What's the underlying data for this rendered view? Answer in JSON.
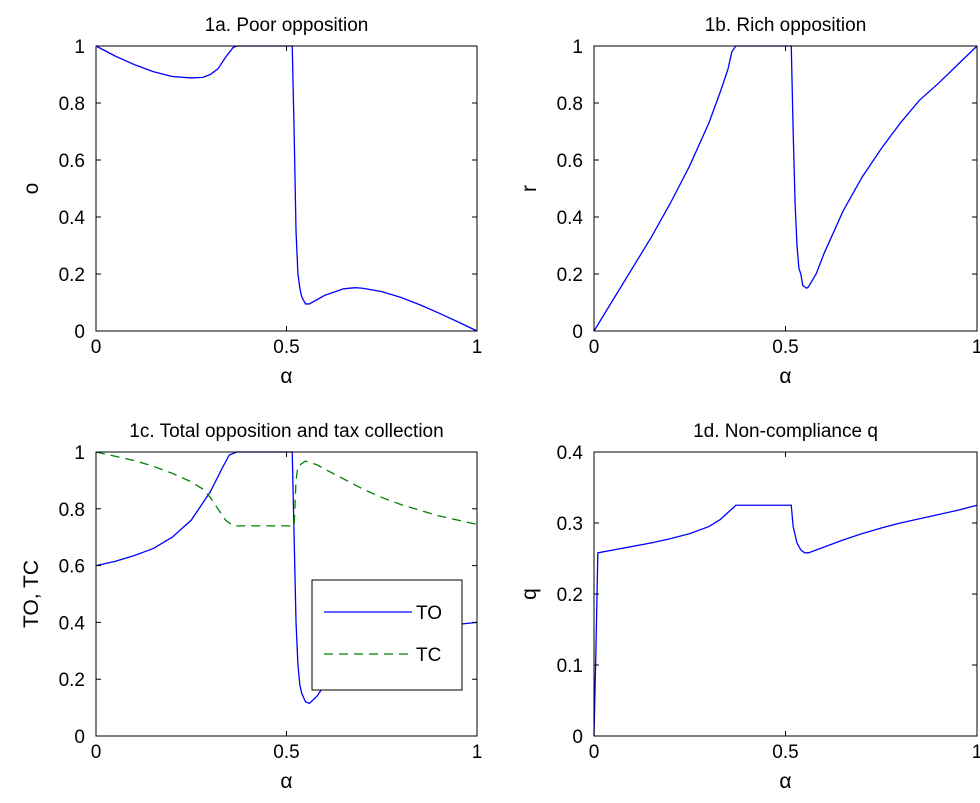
{
  "chart_data": [
    {
      "id": "1a",
      "type": "line",
      "title": "1a. Poor opposition",
      "xlabel": "α",
      "ylabel": "o",
      "xlim": [
        0,
        1
      ],
      "ylim": [
        0,
        1
      ],
      "xticks": [
        "0",
        "0.5",
        "1"
      ],
      "yticks": [
        "0",
        "0.2",
        "0.4",
        "0.6",
        "0.8",
        "1"
      ],
      "grid": false,
      "series": [
        {
          "color": "#0000ff",
          "dash": "solid",
          "x": [
            0,
            0.05,
            0.1,
            0.15,
            0.2,
            0.25,
            0.28,
            0.3,
            0.32,
            0.34,
            0.36,
            0.37,
            0.4,
            0.45,
            0.5,
            0.515,
            0.52,
            0.525,
            0.53,
            0.535,
            0.54,
            0.55,
            0.56,
            0.6,
            0.65,
            0.68,
            0.7,
            0.75,
            0.8,
            0.85,
            0.9,
            0.95,
            1.0
          ],
          "y": [
            1.0,
            0.965,
            0.935,
            0.91,
            0.893,
            0.888,
            0.89,
            0.9,
            0.92,
            0.96,
            0.995,
            1.0,
            1.0,
            1.0,
            1.0,
            1.0,
            0.7,
            0.35,
            0.2,
            0.15,
            0.12,
            0.095,
            0.095,
            0.125,
            0.148,
            0.152,
            0.15,
            0.138,
            0.118,
            0.092,
            0.063,
            0.032,
            0.0
          ]
        }
      ]
    },
    {
      "id": "1b",
      "type": "line",
      "title": "1b. Rich opposition",
      "xlabel": "α",
      "ylabel": "r",
      "xlim": [
        0,
        1
      ],
      "ylim": [
        0,
        1
      ],
      "xticks": [
        "0",
        "0.5",
        "1"
      ],
      "yticks": [
        "0",
        "0.2",
        "0.4",
        "0.6",
        "0.8",
        "1"
      ],
      "grid": false,
      "series": [
        {
          "color": "#0000ff",
          "dash": "solid",
          "x": [
            0,
            0.05,
            0.1,
            0.15,
            0.2,
            0.25,
            0.3,
            0.33,
            0.35,
            0.36,
            0.37,
            0.4,
            0.45,
            0.5,
            0.515,
            0.52,
            0.525,
            0.53,
            0.535,
            0.54,
            0.545,
            0.555,
            0.56,
            0.58,
            0.6,
            0.65,
            0.7,
            0.75,
            0.8,
            0.85,
            0.9,
            0.95,
            1.0
          ],
          "y": [
            0.0,
            0.11,
            0.22,
            0.33,
            0.45,
            0.58,
            0.73,
            0.84,
            0.92,
            0.98,
            1.0,
            1.0,
            1.0,
            1.0,
            1.0,
            0.7,
            0.45,
            0.3,
            0.22,
            0.2,
            0.16,
            0.15,
            0.155,
            0.2,
            0.27,
            0.42,
            0.54,
            0.64,
            0.73,
            0.81,
            0.87,
            0.935,
            1.0
          ]
        }
      ]
    },
    {
      "id": "1c",
      "type": "line",
      "title": "1c. Total opposition and tax collection",
      "xlabel": "α",
      "ylabel": "TO, TC",
      "xlim": [
        0,
        1
      ],
      "ylim": [
        0,
        1
      ],
      "xticks": [
        "0",
        "0.5",
        "1"
      ],
      "yticks": [
        "0",
        "0.2",
        "0.4",
        "0.6",
        "0.8",
        "1"
      ],
      "grid": false,
      "legend": "center-right",
      "series": [
        {
          "name": "TO",
          "color": "#0000ff",
          "dash": "solid",
          "x": [
            0,
            0.05,
            0.1,
            0.15,
            0.2,
            0.25,
            0.3,
            0.33,
            0.35,
            0.37,
            0.4,
            0.45,
            0.5,
            0.515,
            0.52,
            0.525,
            0.53,
            0.535,
            0.54,
            0.55,
            0.56,
            0.58,
            0.6,
            0.65,
            0.7,
            0.75,
            0.8,
            0.85,
            0.9,
            0.95,
            1.0
          ],
          "y": [
            0.6,
            0.615,
            0.635,
            0.66,
            0.7,
            0.76,
            0.86,
            0.94,
            0.99,
            1.0,
            1.0,
            1.0,
            1.0,
            1.0,
            0.7,
            0.4,
            0.25,
            0.18,
            0.15,
            0.12,
            0.115,
            0.14,
            0.18,
            0.25,
            0.3,
            0.335,
            0.36,
            0.375,
            0.385,
            0.393,
            0.4
          ]
        },
        {
          "name": "TC",
          "color": "#008000",
          "dash": "dashed",
          "x": [
            0,
            0.05,
            0.1,
            0.15,
            0.2,
            0.25,
            0.28,
            0.3,
            0.32,
            0.34,
            0.36,
            0.4,
            0.45,
            0.5,
            0.52,
            0.525,
            0.53,
            0.55,
            0.58,
            0.6,
            0.65,
            0.7,
            0.75,
            0.8,
            0.85,
            0.9,
            0.95,
            1.0
          ],
          "y": [
            1.0,
            0.985,
            0.97,
            0.95,
            0.925,
            0.895,
            0.87,
            0.84,
            0.8,
            0.76,
            0.74,
            0.74,
            0.74,
            0.74,
            0.74,
            0.9,
            0.95,
            0.968,
            0.955,
            0.94,
            0.905,
            0.87,
            0.84,
            0.815,
            0.795,
            0.775,
            0.76,
            0.745
          ]
        }
      ]
    },
    {
      "id": "1d",
      "type": "line",
      "title": "1d. Non-compliance q",
      "xlabel": "α",
      "ylabel": "q",
      "xlim": [
        0,
        1
      ],
      "ylim": [
        0,
        0.4
      ],
      "xticks": [
        "0",
        "0.5",
        "1"
      ],
      "yticks": [
        "0",
        "0.1",
        "0.2",
        "0.3",
        "0.4"
      ],
      "grid": false,
      "series": [
        {
          "color": "#0000ff",
          "dash": "solid",
          "x": [
            0,
            0.005,
            0.01,
            0.05,
            0.1,
            0.15,
            0.2,
            0.25,
            0.3,
            0.33,
            0.35,
            0.365,
            0.37,
            0.4,
            0.45,
            0.5,
            0.515,
            0.52,
            0.53,
            0.54,
            0.55,
            0.56,
            0.6,
            0.65,
            0.7,
            0.75,
            0.8,
            0.85,
            0.9,
            0.95,
            1.0
          ],
          "y": [
            0.0,
            0.12,
            0.258,
            0.262,
            0.267,
            0.272,
            0.278,
            0.285,
            0.295,
            0.305,
            0.315,
            0.322,
            0.325,
            0.325,
            0.325,
            0.325,
            0.325,
            0.295,
            0.272,
            0.262,
            0.258,
            0.258,
            0.266,
            0.276,
            0.285,
            0.293,
            0.3,
            0.306,
            0.312,
            0.318,
            0.325
          ]
        }
      ]
    }
  ]
}
